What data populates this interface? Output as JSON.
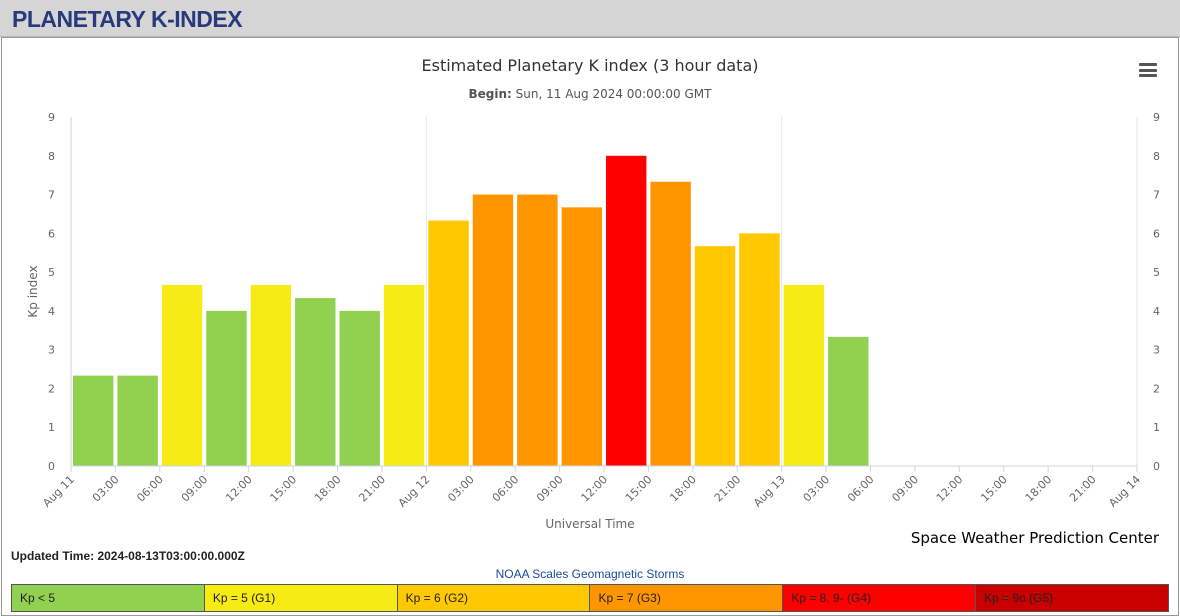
{
  "header": {
    "title": "PLANETARY K-INDEX"
  },
  "menu": {
    "icon": "hamburger-menu-icon"
  },
  "chart_data": {
    "type": "bar",
    "title": "Estimated Planetary K index (3 hour data)",
    "subtitle_label": "Begin:",
    "subtitle_value": "Sun, 11 Aug 2024 00:00:00 GMT",
    "xlabel": "Universal Time",
    "ylabel": "Kp index",
    "ylim": [
      0,
      9
    ],
    "yticks": [
      0,
      1,
      2,
      3,
      4,
      5,
      6,
      7,
      8,
      9
    ],
    "grid": true,
    "x_tick_labels": [
      "Aug 11",
      "03:00",
      "06:00",
      "09:00",
      "12:00",
      "15:00",
      "18:00",
      "21:00",
      "Aug 12",
      "03:00",
      "06:00",
      "09:00",
      "12:00",
      "15:00",
      "18:00",
      "21:00",
      "Aug 13",
      "03:00",
      "06:00",
      "09:00",
      "12:00",
      "15:00",
      "18:00",
      "21:00",
      "Aug 14"
    ],
    "values": [
      2.33,
      2.33,
      4.67,
      4.0,
      4.67,
      4.33,
      4.0,
      4.67,
      6.33,
      7.0,
      7.0,
      6.67,
      8.0,
      7.33,
      5.67,
      6.0,
      4.67,
      3.33
    ],
    "colors": [
      "#92d050",
      "#92d050",
      "#f6eb14",
      "#92d050",
      "#f6eb14",
      "#92d050",
      "#92d050",
      "#f6eb14",
      "#ffc800",
      "#ff9600",
      "#ff9600",
      "#ff9600",
      "#ff0000",
      "#ff9600",
      "#ffc800",
      "#ffc800",
      "#f6eb14",
      "#92d050"
    ]
  },
  "updated": {
    "label": "Updated Time: 2024-08-13T03:00:00.000Z"
  },
  "credit": "Space Weather Prediction Center",
  "legend": {
    "title": "NOAA Scales Geomagnetic Storms",
    "items": [
      {
        "label": "Kp < 5",
        "color": "#92d050"
      },
      {
        "label": "Kp = 5 (G1)",
        "color": "#f6eb14"
      },
      {
        "label": "Kp = 6 (G2)",
        "color": "#ffc800"
      },
      {
        "label": "Kp = 7 (G3)",
        "color": "#ff9600"
      },
      {
        "label": "Kp = 8, 9- (G4)",
        "color": "#ff0000"
      },
      {
        "label": "Kp = 9o (G5)",
        "color": "#c80000"
      }
    ]
  }
}
